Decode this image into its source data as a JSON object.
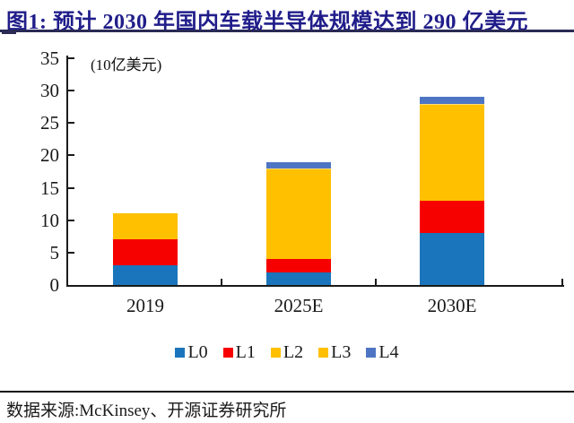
{
  "title": {
    "text": "图1: 预计 2030 年国内车载半导体规模达到 290 亿美元"
  },
  "source": {
    "text": "数据来源:McKinsey、开源证券研究所"
  },
  "colors": {
    "title_navy": "#201D8A",
    "header_rule": "#2A2A55",
    "axis_black": "#1a1a1a",
    "l0_blue": "#1B75BC",
    "l1_red": "#F70000",
    "l2_gold": "#FFC000",
    "l3_gold": "#FFC000",
    "l4_slate_blue": "#4E75C3"
  },
  "chart_data": {
    "type": "bar",
    "stacked": true,
    "title": "",
    "xlabel": "",
    "ylabel": "(10亿美元)",
    "ylim": [
      0,
      35
    ],
    "ytick_step": 5,
    "grid": false,
    "legend_position": "bottom",
    "categories": [
      "2019",
      "2025E",
      "2030E"
    ],
    "series": [
      {
        "name": "L0",
        "color": "#1B75BC",
        "values": [
          3,
          2,
          8
        ]
      },
      {
        "name": "L1",
        "color": "#F70000",
        "values": [
          4,
          2,
          5
        ]
      },
      {
        "name": "L2",
        "color": "#FFC000",
        "values": [
          4,
          13,
          13
        ]
      },
      {
        "name": "L3",
        "color": "#FFC000",
        "values": [
          0,
          1,
          2
        ]
      },
      {
        "name": "L4",
        "color": "#4E75C3",
        "values": [
          0,
          1,
          1
        ]
      }
    ],
    "totals": [
      11,
      19,
      29
    ]
  }
}
